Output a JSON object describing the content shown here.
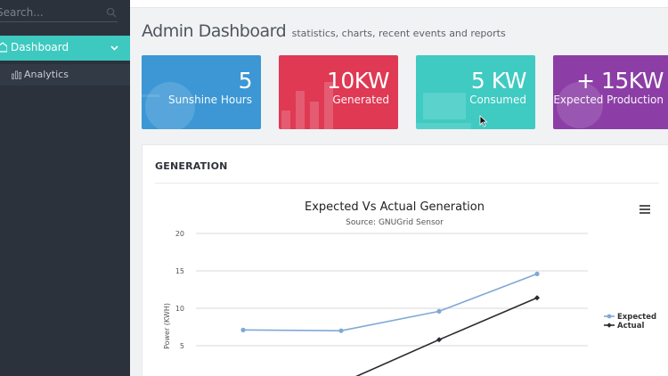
{
  "sidebar": {
    "search_placeholder": "Search...",
    "items": [
      {
        "label": "Dashboard",
        "icon": "home-icon",
        "active": true
      },
      {
        "label": "Analytics",
        "icon": "bar-chart-icon",
        "active": false
      }
    ]
  },
  "header": {
    "title": "Admin Dashboard",
    "subtitle": "statistics, charts, recent events and reports"
  },
  "tiles": [
    {
      "value": "5",
      "label": "Sunshine Hours",
      "color": "#3c97d4"
    },
    {
      "value": "10KW",
      "label": "Generated",
      "color": "#df3954"
    },
    {
      "value": "5 KW",
      "label": "Consumed",
      "color": "#3fcac2"
    },
    {
      "value": "+ 15KW",
      "label": "Expected Production",
      "color": "#8c3ea6"
    }
  ],
  "panel": {
    "heading": "GENERATION",
    "menu_icon": "hamburger-menu-icon"
  },
  "chart_data": {
    "type": "line",
    "title": "Expected Vs Actual Generation",
    "subtitle": "Source: GNUGrid Sensor",
    "ylabel": "Power (KWH)",
    "xlabel": "",
    "yticks": [
      5,
      10,
      15,
      20
    ],
    "ylim": [
      0,
      20
    ],
    "grid": true,
    "legend_position": "right",
    "series": [
      {
        "name": "Expected",
        "color": "#7fa9d6",
        "marker": "circle",
        "x": [
          1,
          2,
          3,
          4
        ],
        "values": [
          7.1,
          7.0,
          9.6,
          14.6
        ]
      },
      {
        "name": "Actual",
        "color": "#2b2b33",
        "marker": "diamond",
        "x": [
          2,
          3,
          4
        ],
        "values": [
          0,
          5.8,
          11.4
        ]
      }
    ]
  }
}
